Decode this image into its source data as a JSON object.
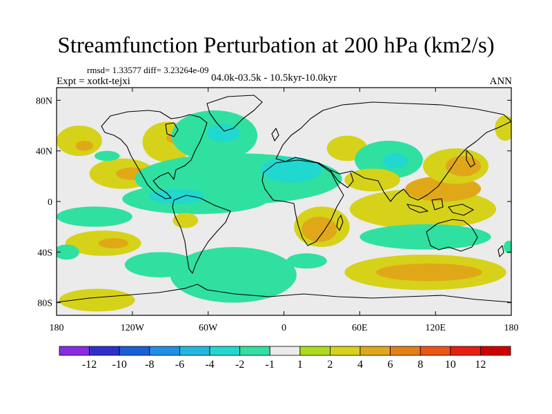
{
  "chart_data": {
    "type": "heatmap",
    "title": "Streamfunction Perturbation at 200 hPa (km2/s)",
    "stats_text": "rmsd= 1.33577  diff= 3.23264e-09",
    "experiment": "Expt = xotkt-tejxi",
    "period": "04.0k-03.5k - 10.5kyr-10.0kyr",
    "season": "ANN",
    "xlim": [
      -180,
      180
    ],
    "ylim": [
      -90,
      90
    ],
    "x_ticks": [
      {
        "value": -180,
        "label": "180"
      },
      {
        "value": -120,
        "label": "120W"
      },
      {
        "value": -60,
        "label": "60W"
      },
      {
        "value": 0,
        "label": "0"
      },
      {
        "value": 60,
        "label": "60E"
      },
      {
        "value": 120,
        "label": "120E"
      },
      {
        "value": 180,
        "label": "180"
      }
    ],
    "y_ticks": [
      {
        "value": 80,
        "label": "80N"
      },
      {
        "value": 40,
        "label": "40N"
      },
      {
        "value": 0,
        "label": "0"
      },
      {
        "value": -40,
        "label": "40S"
      },
      {
        "value": -80,
        "label": "80S"
      }
    ],
    "colorbar": {
      "levels": [
        "-12",
        "-10",
        "-8",
        "-6",
        "-4",
        "-2",
        "-1",
        "1",
        "2",
        "4",
        "6",
        "8",
        "10",
        "12"
      ],
      "colors": [
        "#8a2be2",
        "#2f2fcf",
        "#1a5fd8",
        "#1e90e8",
        "#20b8e0",
        "#20d8d0",
        "#30e0a0",
        "#ebebeb",
        "#aadc1a",
        "#d6d21a",
        "#e0a818",
        "#e67e16",
        "#ec5416",
        "#e81e10",
        "#d00000"
      ]
    },
    "anomaly_regions": [
      {
        "lon": -162,
        "lat": 48,
        "rlon": 18,
        "rlat": 12,
        "level": 2
      },
      {
        "lon": -158,
        "lat": 44,
        "rlon": 7,
        "rlat": 4,
        "level": 4
      },
      {
        "lon": -92,
        "lat": 47,
        "rlon": 20,
        "rlat": 16,
        "level": 2
      },
      {
        "lon": -86,
        "lat": 50,
        "rlon": 7,
        "rlat": 4,
        "level": 4
      },
      {
        "lon": -55,
        "lat": 52,
        "rlon": 34,
        "rlat": 20,
        "level": -1
      },
      {
        "lon": -48,
        "lat": 54,
        "rlon": 13,
        "rlat": 7,
        "level": -2
      },
      {
        "lon": -128,
        "lat": 22,
        "rlon": 26,
        "rlat": 12,
        "level": 2
      },
      {
        "lon": -120,
        "lat": 22,
        "rlon": 13,
        "rlat": 5,
        "level": 4
      },
      {
        "lon": -140,
        "lat": 36,
        "rlon": 10,
        "rlat": 4,
        "level": -1
      },
      {
        "lon": -36,
        "lat": 18,
        "rlon": 82,
        "rlat": 20,
        "level": -1
      },
      {
        "lon": -70,
        "lat": 2,
        "rlon": 58,
        "rlat": 12,
        "level": -1
      },
      {
        "lon": -85,
        "lat": 4,
        "rlon": 22,
        "rlat": 6,
        "level": -2
      },
      {
        "lon": 6,
        "lat": 25,
        "rlon": 24,
        "rlat": 10,
        "level": -2
      },
      {
        "lon": -150,
        "lat": -12,
        "rlon": 30,
        "rlat": 8,
        "level": -1
      },
      {
        "lon": -78,
        "lat": -15,
        "rlon": 10,
        "rlat": 6,
        "level": 2
      },
      {
        "lon": -143,
        "lat": -33,
        "rlon": 30,
        "rlat": 10,
        "level": 2
      },
      {
        "lon": -135,
        "lat": -33,
        "rlon": 12,
        "rlat": 4,
        "level": 4
      },
      {
        "lon": -172,
        "lat": -40,
        "rlon": 10,
        "rlat": 6,
        "level": -1
      },
      {
        "lon": -98,
        "lat": -50,
        "rlon": 28,
        "rlat": 10,
        "level": -1
      },
      {
        "lon": -40,
        "lat": -58,
        "rlon": 50,
        "rlat": 22,
        "level": -1
      },
      {
        "lon": -148,
        "lat": -78,
        "rlon": 30,
        "rlat": 9,
        "level": 2
      },
      {
        "lon": 30,
        "lat": -20,
        "rlon": 22,
        "rlat": 16,
        "level": 2
      },
      {
        "lon": 28,
        "lat": -22,
        "rlon": 14,
        "rlat": 10,
        "level": 4
      },
      {
        "lon": 18,
        "lat": -47,
        "rlon": 16,
        "rlat": 6,
        "level": -1
      },
      {
        "lon": 50,
        "lat": 42,
        "rlon": 16,
        "rlat": 10,
        "level": 2
      },
      {
        "lon": 83,
        "lat": 33,
        "rlon": 27,
        "rlat": 15,
        "level": -1
      },
      {
        "lon": 88,
        "lat": 32,
        "rlon": 10,
        "rlat": 6,
        "level": -2
      },
      {
        "lon": 70,
        "lat": 17,
        "rlon": 22,
        "rlat": 9,
        "level": 2
      },
      {
        "lon": 110,
        "lat": -6,
        "rlon": 58,
        "rlat": 16,
        "level": 2
      },
      {
        "lon": 126,
        "lat": 10,
        "rlon": 30,
        "rlat": 10,
        "level": 4
      },
      {
        "lon": 136,
        "lat": 28,
        "rlon": 26,
        "rlat": 14,
        "level": 2
      },
      {
        "lon": 142,
        "lat": 28,
        "rlon": 14,
        "rlat": 8,
        "level": 4
      },
      {
        "lon": 112,
        "lat": -28,
        "rlon": 52,
        "rlat": 10,
        "level": -1
      },
      {
        "lon": 112,
        "lat": -56,
        "rlon": 64,
        "rlat": 14,
        "level": 2
      },
      {
        "lon": 115,
        "lat": -56,
        "rlon": 42,
        "rlat": 7,
        "level": 4
      },
      {
        "lon": 175,
        "lat": 58,
        "rlon": 8,
        "rlat": 10,
        "level": 2
      },
      {
        "lon": 178,
        "lat": -36,
        "rlon": 4,
        "rlat": 5,
        "level": -1
      }
    ]
  }
}
